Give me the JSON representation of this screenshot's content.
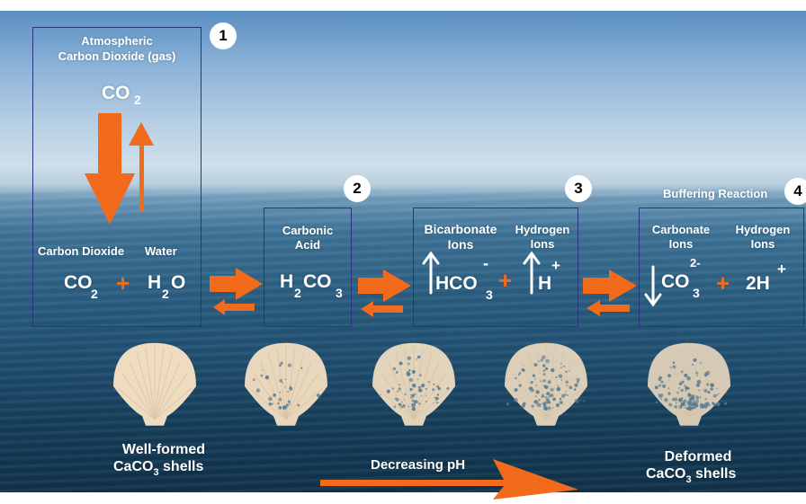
{
  "steps": {
    "s1": {
      "number": "1",
      "title_line1": "Atmospheric",
      "title_line2": "Carbon Dioxide (gas)",
      "gas_formula": "CO",
      "gas_sub": "2",
      "label_co2": "Carbon Dioxide",
      "label_water": "Water",
      "f_co": "CO",
      "f_co_sub": "2",
      "plus": "+",
      "f_h": "H",
      "f_h_sub": "2",
      "f_o": "O"
    },
    "s2": {
      "number": "2",
      "title_line1": "Carbonic",
      "title_line2": "Acid",
      "f_h": "H",
      "f_h_sub": "2",
      "f_co": "CO",
      "f_co_sub": "3"
    },
    "s3": {
      "number": "3",
      "title1_line1": "Bicarbonate",
      "title1_line2": "Ions",
      "title2_line1": "Hydrogen",
      "title2_line2": "Ions",
      "f_hco": "HCO",
      "f_hco_sub": "3",
      "f_hco_sup": "-",
      "plus": "+",
      "f_h": "H",
      "f_h_sup": "+"
    },
    "s4": {
      "number": "4",
      "heading": "Buffering Reaction",
      "title1_line1": "Carbonate",
      "title1_line2": "Ions",
      "title2_line1": "Hydrogen",
      "title2_line2": "Ions",
      "f_co": "CO",
      "f_co_sub": "3",
      "f_co_sup": "2-",
      "plus": "+",
      "f_h": "2H",
      "f_h_sup": "+"
    }
  },
  "shells": {
    "left_line1": "Well-formed",
    "left_line2_a": "CaCO",
    "left_line2_sub": "3",
    "left_line2_b": " shells",
    "right_line1": "Deformed",
    "right_line2_a": "CaCO",
    "right_line2_sub": "3",
    "right_line2_b": " shells",
    "degradation_levels": [
      0,
      0.25,
      0.5,
      0.75,
      1
    ]
  },
  "ph_arrow": {
    "label": "Decreasing pH"
  },
  "colors": {
    "arrow": "#f26a1b",
    "box_border": "#2b3480",
    "shell": "#efdcc0",
    "pit": "#5b7e94",
    "text": "#ffffff"
  }
}
